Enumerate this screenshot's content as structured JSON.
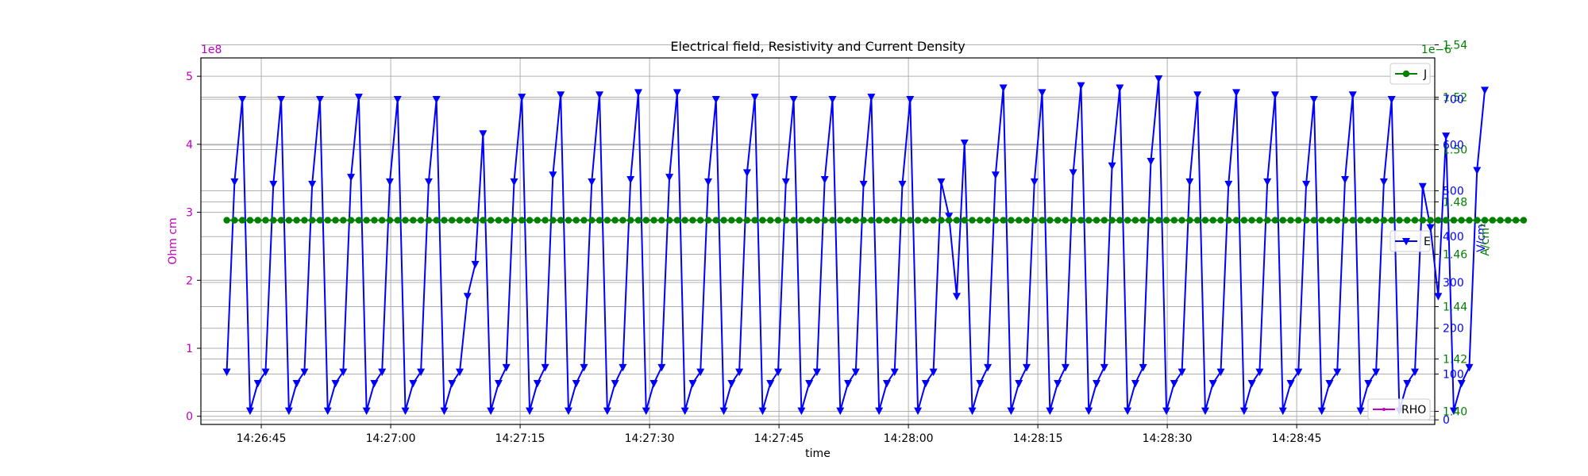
{
  "chart_data": {
    "type": "line",
    "title": "Electrical field, Resistivity and Current Density",
    "xlabel": "time",
    "x_start": "14:26:41",
    "x_step_seconds": 0.9,
    "xlim": [
      "14:26:38",
      "14:29:01"
    ],
    "x_tick_labels": [
      "14:26:45",
      "14:27:00",
      "14:27:15",
      "14:27:30",
      "14:27:45",
      "14:28:00",
      "14:28:15",
      "14:28:30",
      "14:28:45"
    ],
    "grid": true,
    "axes": [
      {
        "id": "rho",
        "ylabel": "Ohm cm",
        "color": "#bf00bf",
        "offset_label": "1e8",
        "ylim": [
          -0.12,
          5.27
        ],
        "ticks": [
          0,
          1,
          2,
          3,
          4,
          5
        ],
        "tick_labels": [
          "0",
          "1",
          "2",
          "3",
          "4",
          "5"
        ]
      },
      {
        "id": "j",
        "ylabel": "A/cm²",
        "color": "#008000",
        "offset_label": "1e−6",
        "ylim": [
          1.395,
          1.535
        ],
        "ticks": [
          1.4,
          1.42,
          1.44,
          1.46,
          1.48,
          1.5,
          1.52,
          1.54
        ],
        "tick_labels": [
          "1.40",
          "1.42",
          "1.44",
          "1.46",
          "1.48",
          "1.50",
          "1.52",
          "1.54"
        ]
      },
      {
        "id": "e",
        "ylabel": "V/cm",
        "color": "#0000ff",
        "ylim": [
          -10,
          790
        ],
        "ticks": [
          0,
          100,
          200,
          300,
          400,
          500,
          600,
          700
        ],
        "tick_labels": [
          "0",
          "100",
          "200",
          "300",
          "400",
          "500",
          "600",
          "700"
        ]
      }
    ],
    "series": [
      {
        "name": "E",
        "axis": "e",
        "color": "#0000ff",
        "marker": "triangle-down",
        "values": [
          105,
          520,
          700,
          20,
          80,
          105,
          515,
          700,
          20,
          80,
          105,
          515,
          700,
          20,
          80,
          105,
          530,
          705,
          20,
          80,
          105,
          520,
          700,
          20,
          80,
          105,
          520,
          700,
          20,
          80,
          105,
          270,
          340,
          625,
          20,
          80,
          115,
          520,
          705,
          20,
          80,
          115,
          535,
          710,
          20,
          80,
          115,
          520,
          710,
          20,
          80,
          115,
          525,
          715,
          20,
          80,
          115,
          530,
          715,
          20,
          80,
          105,
          520,
          700,
          20,
          80,
          105,
          540,
          705,
          20,
          80,
          105,
          520,
          700,
          20,
          80,
          105,
          525,
          700,
          20,
          80,
          105,
          515,
          705,
          20,
          80,
          105,
          515,
          700,
          20,
          80,
          105,
          520,
          445,
          270,
          605,
          20,
          80,
          115,
          535,
          725,
          20,
          80,
          115,
          520,
          715,
          20,
          80,
          115,
          540,
          730,
          20,
          80,
          115,
          555,
          725,
          20,
          80,
          115,
          565,
          745,
          20,
          80,
          105,
          520,
          710,
          20,
          80,
          105,
          515,
          715,
          20,
          80,
          105,
          520,
          710,
          20,
          80,
          105,
          515,
          700,
          20,
          80,
          105,
          525,
          710,
          20,
          80,
          105,
          520,
          700,
          20,
          80,
          105,
          510,
          420,
          270,
          620,
          20,
          80,
          115,
          545,
          720
        ]
      },
      {
        "name": "J",
        "axis": "j",
        "color": "#008000",
        "marker": "circle",
        "constant": 1.473,
        "count": 168
      },
      {
        "name": "RHO",
        "axis": "rho",
        "color": "#bf00bf",
        "marker": "point",
        "values": []
      }
    ],
    "legends": [
      {
        "label": "J",
        "color": "#008000",
        "marker": "circle",
        "position": "upper-right"
      },
      {
        "label": "E",
        "color": "#0000ff",
        "marker": "triangle-down",
        "position": "center-right"
      },
      {
        "label": "RHO",
        "color": "#bf00bf",
        "marker": "point",
        "position": "lower-right"
      }
    ]
  }
}
